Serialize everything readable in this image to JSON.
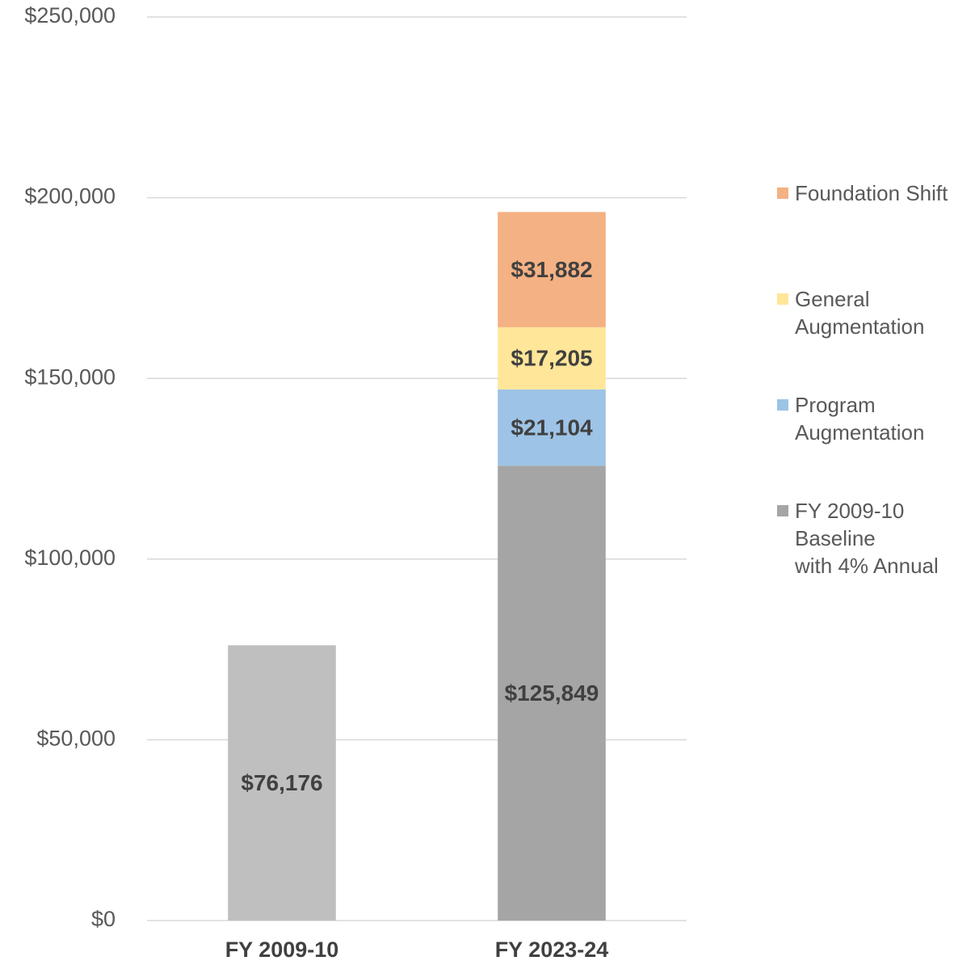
{
  "chart_data": {
    "type": "stacked_bar",
    "categories": [
      "FY 2009-10",
      "FY 2023-24"
    ],
    "series": [
      {
        "name": "FY 2009-10\nBaseline\nwith 4% Annual",
        "color": "#a5a5a5",
        "point_colors": [
          "#bfbfbf",
          "#a5a5a5"
        ],
        "values": [
          76176,
          125849
        ],
        "value_labels": [
          "$76,176",
          "$125,849"
        ]
      },
      {
        "name": "Program\nAugmentation",
        "color": "#9dc3e6",
        "values": [
          null,
          21104
        ],
        "value_labels": [
          null,
          "$21,104"
        ]
      },
      {
        "name": "General\nAugmentation",
        "color": "#ffe699",
        "values": [
          null,
          17205
        ],
        "value_labels": [
          null,
          "$17,205"
        ]
      },
      {
        "name": "Foundation Shift",
        "color": "#f4b183",
        "values": [
          null,
          31882
        ],
        "value_labels": [
          null,
          "$31,882"
        ]
      }
    ],
    "ylim": [
      0,
      250000
    ],
    "yticks": [
      {
        "value": 0,
        "label": "$0"
      },
      {
        "value": 50000,
        "label": "$50,000"
      },
      {
        "value": 100000,
        "label": "$100,000"
      },
      {
        "value": 150000,
        "label": "$150,000"
      },
      {
        "value": 200000,
        "label": "$200,000"
      },
      {
        "value": 250000,
        "label": "$250,000"
      }
    ],
    "grid": true,
    "legend": "right"
  }
}
